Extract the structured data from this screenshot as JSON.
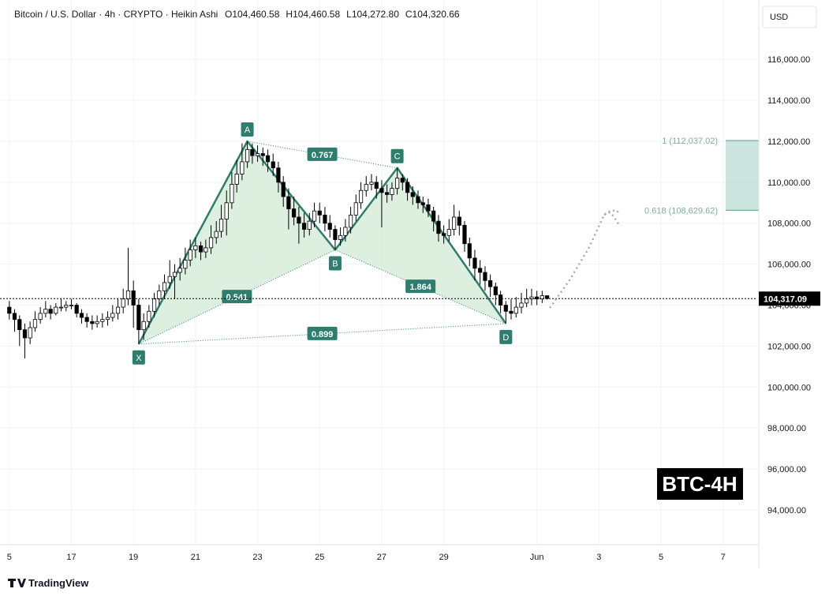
{
  "header": {
    "title": "Bitcoin / U.S. Dollar · 4h · CRYPTO · Heikin Ashi",
    "ohlc": [
      "O104,460.58",
      "H104,460.58",
      "L104,272.80",
      "C104,320.66"
    ],
    "currency": "USD",
    "footer": "TradingView"
  },
  "chart_data": {
    "type": "candlestick",
    "watermark": "BTC-4H",
    "up_color": "#ffffff",
    "down_color": "#000000",
    "border_color": "#000000",
    "grid": true,
    "xlim": [
      14.7,
      39.1
    ],
    "ylim": [
      92300,
      118900
    ],
    "xticks": [
      {
        "value": 15,
        "label": "5"
      },
      17,
      19,
      21,
      23,
      25,
      27,
      29,
      {
        "value": 32,
        "label": "Jun"
      },
      {
        "value": 34,
        "label": "3"
      },
      {
        "value": 36,
        "label": "5"
      },
      {
        "value": 38,
        "label": "7"
      }
    ],
    "yticks": [
      {
        "value": 94000,
        "label": "94,000.00"
      },
      {
        "value": 96000,
        "label": "96,000.00"
      },
      {
        "value": 98000,
        "label": "98,000.00"
      },
      {
        "value": 100000,
        "label": "100,000.00"
      },
      {
        "value": 102000,
        "label": "102,000.00"
      },
      {
        "value": 104000,
        "label": "104,000.00"
      },
      {
        "value": 106000,
        "label": "106,000.00"
      },
      {
        "value": 108000,
        "label": "108,000.00"
      },
      {
        "value": 110000,
        "label": "110,000.00"
      },
      {
        "value": 112000,
        "label": "112,000.00"
      },
      {
        "value": 114000,
        "label": "114,000.00"
      },
      {
        "value": 116000,
        "label": "116,000.00"
      }
    ],
    "last_price": {
      "value": 104317.09,
      "label": "104,317.09"
    },
    "x": [
      15,
      15.17,
      15.33,
      15.5,
      15.67,
      15.83,
      16,
      16.17,
      16.33,
      16.5,
      16.67,
      16.83,
      17,
      17.17,
      17.33,
      17.5,
      17.67,
      17.83,
      18,
      18.17,
      18.33,
      18.5,
      18.67,
      18.83,
      19,
      19.17,
      19.33,
      19.5,
      19.67,
      19.83,
      20,
      20.17,
      20.33,
      20.5,
      20.67,
      20.83,
      21,
      21.17,
      21.33,
      21.5,
      21.67,
      21.83,
      22,
      22.17,
      22.33,
      22.5,
      22.67,
      22.83,
      23,
      23.17,
      23.33,
      23.5,
      23.67,
      23.83,
      24,
      24.17,
      24.33,
      24.5,
      24.67,
      24.83,
      25,
      25.17,
      25.33,
      25.5,
      25.67,
      25.83,
      26,
      26.17,
      26.33,
      26.5,
      26.67,
      26.83,
      27,
      27.17,
      27.33,
      27.5,
      27.67,
      27.83,
      28,
      28.17,
      28.33,
      28.5,
      28.67,
      28.83,
      29,
      29.17,
      29.33,
      29.5,
      29.67,
      29.83,
      30,
      30.17,
      30.33,
      30.5,
      30.67,
      30.83,
      31,
      31.17,
      31.33,
      31.5,
      31.67,
      31.83,
      32,
      32.17,
      32.33
    ],
    "candles": [
      [
        103900,
        104200,
        103300,
        103600
      ],
      [
        103600,
        103800,
        102700,
        103300
      ],
      [
        103300,
        103500,
        102000,
        102800
      ],
      [
        102800,
        103100,
        101400,
        102400
      ],
      [
        102400,
        103200,
        102100,
        102900
      ],
      [
        102900,
        103700,
        102700,
        103300
      ],
      [
        103300,
        103900,
        103100,
        103600
      ],
      [
        103600,
        104200,
        103400,
        103800
      ],
      [
        103800,
        104000,
        103300,
        103600
      ],
      [
        103600,
        104100,
        103500,
        103900
      ],
      [
        103900,
        104300,
        103700,
        103900
      ],
      [
        103900,
        104200,
        103700,
        104000
      ],
      [
        104000,
        104300,
        103800,
        104000
      ],
      [
        104000,
        104100,
        103400,
        103600
      ],
      [
        103600,
        103800,
        103100,
        103400
      ],
      [
        103400,
        103600,
        102900,
        103200
      ],
      [
        103200,
        103500,
        102800,
        103100
      ],
      [
        103100,
        103500,
        102900,
        103200
      ],
      [
        103200,
        103600,
        102900,
        103300
      ],
      [
        103300,
        103700,
        103000,
        103400
      ],
      [
        103400,
        104000,
        103200,
        103600
      ],
      [
        103600,
        104300,
        103300,
        103900
      ],
      [
        103900,
        104800,
        103600,
        104300
      ],
      [
        104300,
        106800,
        104000,
        104700
      ],
      [
        104700,
        105200,
        102900,
        104000
      ],
      [
        104000,
        104300,
        102100,
        102800
      ],
      [
        102800,
        103600,
        102300,
        103200
      ],
      [
        103200,
        104000,
        102900,
        103700
      ],
      [
        103700,
        104600,
        103400,
        104300
      ],
      [
        104300,
        105000,
        104000,
        104700
      ],
      [
        104700,
        105500,
        104300,
        105100
      ],
      [
        105100,
        106200,
        104800,
        105400
      ],
      [
        105400,
        106000,
        104300,
        105600
      ],
      [
        105600,
        106300,
        105200,
        105800
      ],
      [
        105800,
        106800,
        105500,
        106200
      ],
      [
        106200,
        107200,
        105900,
        106700
      ],
      [
        106700,
        107300,
        106300,
        106900
      ],
      [
        106900,
        107100,
        106200,
        106600
      ],
      [
        106600,
        107200,
        106300,
        106800
      ],
      [
        106800,
        107900,
        106500,
        107300
      ],
      [
        107300,
        108100,
        107000,
        107600
      ],
      [
        107600,
        108900,
        107300,
        108200
      ],
      [
        108200,
        109600,
        107400,
        109000
      ],
      [
        109000,
        110500,
        108700,
        109900
      ],
      [
        109900,
        111100,
        109500,
        110400
      ],
      [
        110400,
        111900,
        110100,
        111000
      ],
      [
        111000,
        112000,
        110700,
        111600
      ],
      [
        111600,
        111900,
        110900,
        111300
      ],
      [
        111300,
        111800,
        111000,
        111400
      ],
      [
        111400,
        111700,
        110800,
        111300
      ],
      [
        111300,
        111600,
        110500,
        111000
      ],
      [
        111000,
        111400,
        110300,
        110700
      ],
      [
        110700,
        111000,
        109500,
        110000
      ],
      [
        110000,
        110300,
        108800,
        109300
      ],
      [
        109300,
        109700,
        107700,
        108700
      ],
      [
        108700,
        109300,
        107900,
        108300
      ],
      [
        108300,
        108800,
        107000,
        108000
      ],
      [
        108000,
        108500,
        107300,
        107700
      ],
      [
        107700,
        108500,
        107400,
        108100
      ],
      [
        108100,
        109000,
        107800,
        108600
      ],
      [
        108600,
        109000,
        108000,
        108400
      ],
      [
        108400,
        108800,
        107600,
        108000
      ],
      [
        108000,
        108400,
        107300,
        107700
      ],
      [
        107700,
        107900,
        106700,
        107200
      ],
      [
        107200,
        107800,
        106900,
        107400
      ],
      [
        107400,
        108200,
        107100,
        107800
      ],
      [
        107800,
        108800,
        107500,
        108400
      ],
      [
        108400,
        109400,
        108100,
        109000
      ],
      [
        109000,
        110000,
        108700,
        109600
      ],
      [
        109600,
        110300,
        109300,
        109900
      ],
      [
        109900,
        110400,
        109600,
        110000
      ],
      [
        110000,
        110300,
        109200,
        109700
      ],
      [
        109700,
        110100,
        107800,
        109500
      ],
      [
        109500,
        109900,
        109000,
        109400
      ],
      [
        109400,
        110000,
        109100,
        109700
      ],
      [
        109700,
        110700,
        109400,
        110200
      ],
      [
        110200,
        110400,
        109600,
        110000
      ],
      [
        110000,
        110200,
        109100,
        109500
      ],
      [
        109500,
        109800,
        108900,
        109300
      ],
      [
        109300,
        109600,
        108700,
        109000
      ],
      [
        109000,
        109300,
        108500,
        108900
      ],
      [
        108900,
        109200,
        108300,
        108600
      ],
      [
        108600,
        108800,
        107600,
        108100
      ],
      [
        108100,
        108400,
        107100,
        107500
      ],
      [
        107500,
        107900,
        107000,
        107400
      ],
      [
        107400,
        108200,
        107100,
        107700
      ],
      [
        107700,
        108900,
        107400,
        108300
      ],
      [
        108300,
        108600,
        107400,
        107900
      ],
      [
        107900,
        108100,
        106600,
        107000
      ],
      [
        107000,
        107300,
        105900,
        106300
      ],
      [
        106300,
        106700,
        105200,
        105800
      ],
      [
        105800,
        106200,
        105000,
        105600
      ],
      [
        105600,
        105900,
        104700,
        105200
      ],
      [
        105200,
        105500,
        104400,
        104900
      ],
      [
        104900,
        105100,
        104000,
        104500
      ],
      [
        104500,
        104700,
        103600,
        104000
      ],
      [
        104000,
        104200,
        103100,
        103700
      ],
      [
        103700,
        104300,
        103300,
        103600
      ],
      [
        103600,
        104400,
        103400,
        103900
      ],
      [
        103900,
        104600,
        103600,
        104100
      ],
      [
        104100,
        104800,
        103900,
        104300
      ],
      [
        104300,
        104800,
        104000,
        104400
      ],
      [
        104400,
        104700,
        104000,
        104300
      ],
      [
        104300,
        104700,
        104100,
        104460.58
      ],
      [
        104460.58,
        104460.58,
        104272.8,
        104320.66
      ]
    ],
    "pattern": {
      "color": "#2e7d6e",
      "fill": "#cfead2",
      "points": [
        {
          "name": "X",
          "x": 19.17,
          "y": 102100
        },
        {
          "name": "A",
          "x": 22.67,
          "y": 112000
        },
        {
          "name": "B",
          "x": 25.5,
          "y": 106700
        },
        {
          "name": "C",
          "x": 27.5,
          "y": 110700
        },
        {
          "name": "D",
          "x": 31,
          "y": 103100
        }
      ],
      "ratios": [
        0.767,
        0.541,
        1.864,
        0.899
      ]
    },
    "targets": {
      "color": "#a9d2c6",
      "items": [
        {
          "value": 112037.02,
          "label": "1 (112,037.02)"
        },
        {
          "value": 108629.62,
          "label": "0.618 (108,629.62)"
        }
      ]
    }
  }
}
